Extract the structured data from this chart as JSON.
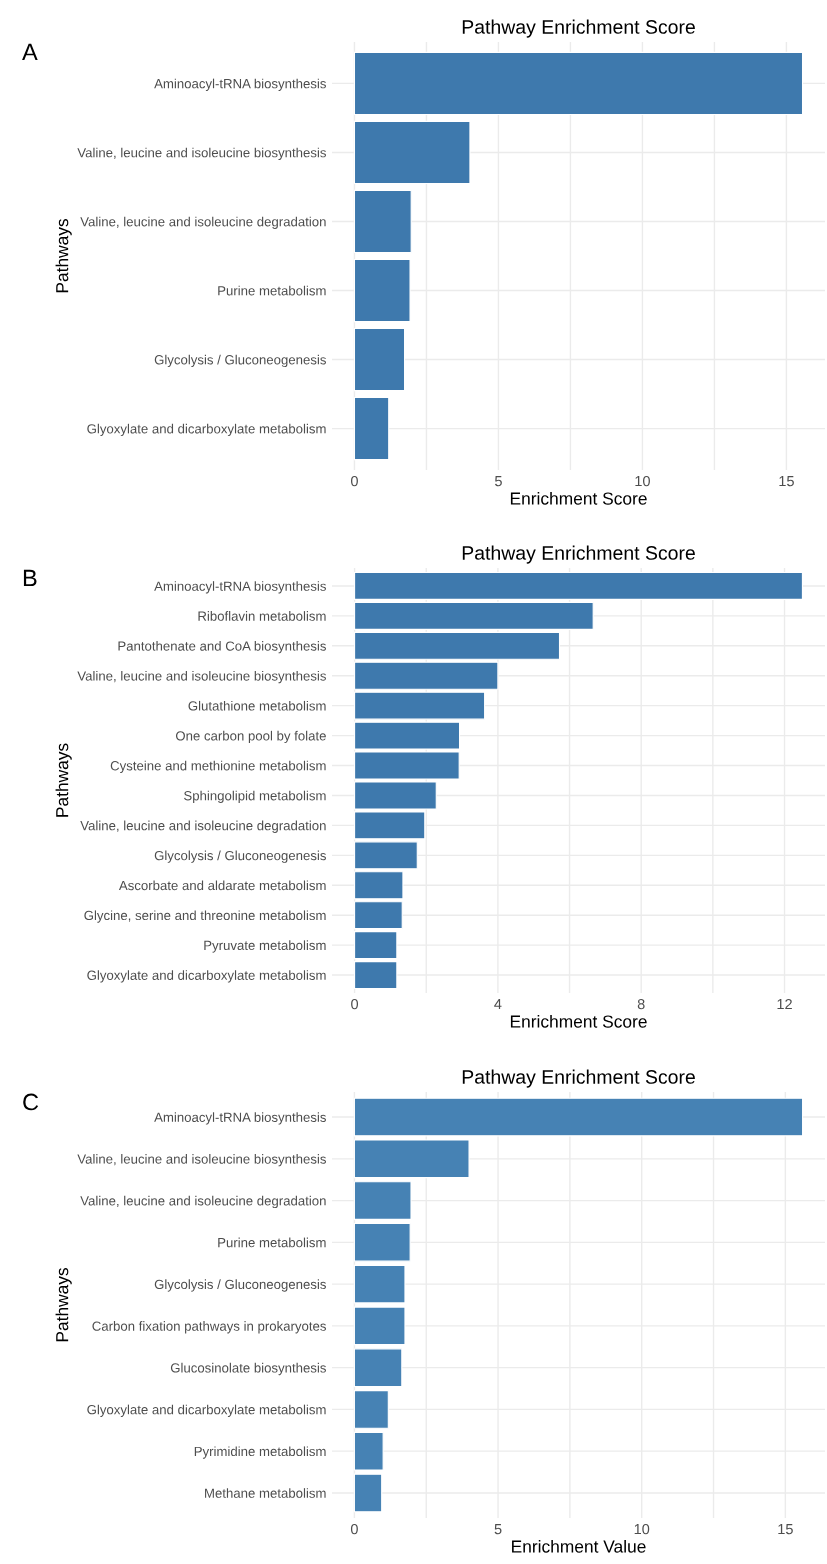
{
  "chart_data": [
    {
      "type": "bar",
      "orientation": "horizontal",
      "title": "Pathway Enrichment Score",
      "xlabel": "Enrichment Score",
      "ylabel": "Pathways",
      "annotations": [
        "A"
      ],
      "categories": [
        "Aminoacyl-tRNA biosynthesis",
        "Valine, leucine and isoleucine biosynthesis",
        "Valine, leucine and isoleucine degradation",
        "Purine metabolism",
        "Glycolysis / Gluconeogenesis",
        "Glyoxylate and dicarboxylate metabolism"
      ],
      "values": [
        15.56,
        4.01,
        1.97,
        1.93,
        1.74,
        1.19
      ],
      "color": "#3e79ad",
      "xlim": [
        -0.78,
        16.34
      ],
      "xticks": [
        0,
        {
          "value": 2.5,
          "label": null
        },
        5,
        {
          "value": 7.5,
          "label": null
        },
        10,
        {
          "value": 12.5,
          "label": null
        },
        15
      ],
      "grid": true
    },
    {
      "type": "bar",
      "orientation": "horizontal",
      "title": "Pathway Enrichment Score",
      "xlabel": "Enrichment Score",
      "ylabel": "Pathways",
      "annotations": [
        "B"
      ],
      "categories": [
        "Aminoacyl-tRNA biosynthesis",
        "Riboflavin metabolism",
        "Pantothenate and CoA biosynthesis",
        "Valine, leucine and isoleucine biosynthesis",
        "Glutathione metabolism",
        "One carbon pool by folate",
        "Cysteine and methionine metabolism",
        "Sphingolipid metabolism",
        "Valine, leucine and isoleucine degradation",
        "Glycolysis / Gluconeogenesis",
        "Ascorbate and aldarate metabolism",
        "Glycine, serine and threonine metabolism",
        "Pyruvate metabolism",
        "Glyoxylate and dicarboxylate metabolism"
      ],
      "values": [
        12.5,
        6.66,
        5.72,
        4.0,
        3.63,
        2.93,
        2.92,
        2.28,
        1.96,
        1.75,
        1.35,
        1.33,
        1.18,
        1.18
      ],
      "color": "#3e79ad",
      "xlim": [
        -0.63,
        13.13
      ],
      "xticks": [
        0,
        {
          "value": 2,
          "label": null
        },
        4,
        {
          "value": 6,
          "label": null
        },
        8,
        {
          "value": 10,
          "label": null
        },
        12
      ],
      "grid": true
    },
    {
      "type": "bar",
      "orientation": "horizontal",
      "title": "Pathway Enrichment Score",
      "xlabel": "Enrichment Value",
      "ylabel": "Pathways",
      "annotations": [
        "C"
      ],
      "categories": [
        "Aminoacyl-tRNA biosynthesis",
        "Valine, leucine and isoleucine biosynthesis",
        "Valine, leucine and isoleucine degradation",
        "Purine metabolism",
        "Glycolysis / Gluconeogenesis",
        "Carbon fixation pathways in prokaryotes",
        "Glucosinolate biosynthesis",
        "Glyoxylate and dicarboxylate metabolism",
        "Pyrimidine metabolism",
        "Methane metabolism"
      ],
      "values": [
        15.6,
        3.99,
        1.97,
        1.94,
        1.76,
        1.76,
        1.65,
        1.18,
        1.0,
        0.95
      ],
      "color": "#4682b4",
      "xlim": [
        -0.78,
        16.38
      ],
      "xticks": [
        0,
        {
          "value": 2.5,
          "label": null
        },
        5,
        {
          "value": 7.5,
          "label": null
        },
        10,
        {
          "value": 12.5,
          "label": null
        },
        15
      ],
      "grid": true
    }
  ]
}
